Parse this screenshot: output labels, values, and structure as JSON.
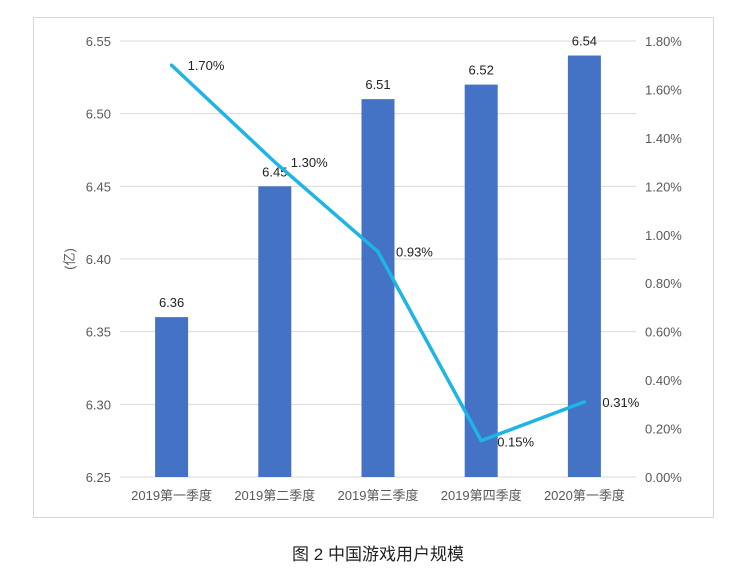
{
  "caption": "图 2 中国游戏用户规模",
  "chart_data": {
    "type": "bar",
    "categories": [
      "2019第一季度",
      "2019第二季度",
      "2019第三季度",
      "2019第四季度",
      "2020第一季度"
    ],
    "series": [
      {
        "type": "bar",
        "axis": "left",
        "values": [
          6.36,
          6.45,
          6.51,
          6.52,
          6.54
        ],
        "labels": [
          "6.36",
          "6.45",
          "6.51",
          "6.52",
          "6.54"
        ],
        "color": "#4472c4"
      },
      {
        "type": "line",
        "axis": "right",
        "values": [
          1.7,
          1.3,
          0.93,
          0.15,
          0.31
        ],
        "labels": [
          "1.70%",
          "1.30%",
          "0.93%",
          "0.15%",
          "0.31%"
        ],
        "color": "#1eb4e6"
      }
    ],
    "ylabel": "(亿)",
    "ylim": [
      6.25,
      6.55
    ],
    "yticks": [
      "6.25",
      "6.30",
      "6.35",
      "6.40",
      "6.45",
      "6.50",
      "6.55"
    ],
    "y2lim": [
      0,
      1.8
    ],
    "y2ticks": [
      "0.00%",
      "0.20%",
      "0.40%",
      "0.60%",
      "0.80%",
      "1.00%",
      "1.20%",
      "1.40%",
      "1.60%",
      "1.80%"
    ],
    "grid": true,
    "legend": "none"
  }
}
